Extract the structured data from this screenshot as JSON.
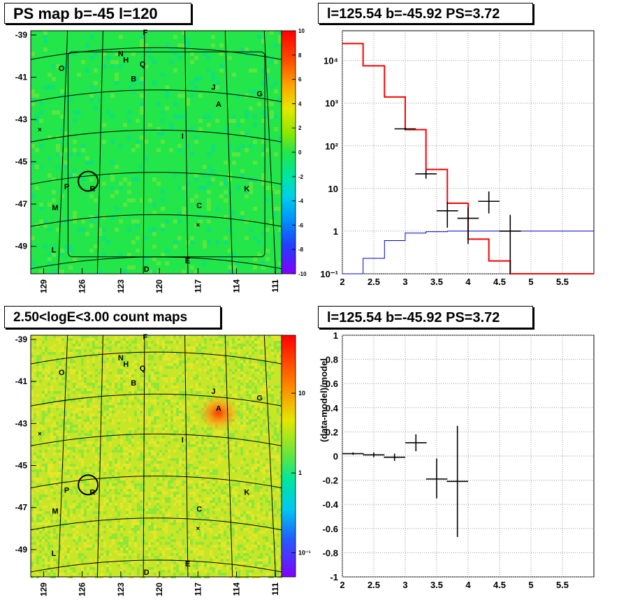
{
  "panels": {
    "tl_title": "PS map b=-45 l=120",
    "bl_title": "2.50<logE<3.00 count maps",
    "tr_title": "l=125.54 b=-45.92 PS=3.72",
    "br_title": "l=125.54 b=-45.92 PS=3.72"
  },
  "colors": {
    "map_green": "#22e64a",
    "map_yellow": "#c8e628",
    "hot_orange": "#ff7a10",
    "model_red": "#ff0000",
    "background_blue": "#0000cc"
  },
  "chart_data": [
    {
      "type": "heatmap",
      "title": "PS map b=-45 l=120",
      "x_tick_labels": [
        "129",
        "126",
        "123",
        "120",
        "117",
        "114",
        "111"
      ],
      "y_tick_labels": [
        "-39",
        "-41",
        "-43",
        "-45",
        "-47",
        "-49"
      ],
      "xlim": [
        130,
        110.5
      ],
      "ylim": [
        -50.3,
        -38.8
      ],
      "colorbar": {
        "range": [
          -10,
          10
        ],
        "tick_labels": [
          "10",
          "8",
          "6",
          "4",
          "2",
          "0",
          "-2",
          "-4",
          "-6",
          "-8",
          "-10"
        ]
      },
      "source_labels": [
        {
          "name": "F",
          "l": 121.1,
          "b": -39.0
        },
        {
          "name": "N",
          "l": 123.0,
          "b": -40.0
        },
        {
          "name": "H",
          "l": 122.6,
          "b": -40.3
        },
        {
          "name": "Q",
          "l": 121.3,
          "b": -40.5
        },
        {
          "name": "O",
          "l": 127.6,
          "b": -40.7
        },
        {
          "name": "B",
          "l": 122.0,
          "b": -41.2
        },
        {
          "name": "J",
          "l": 115.8,
          "b": -41.6
        },
        {
          "name": "G",
          "l": 112.2,
          "b": -41.9
        },
        {
          "name": "A",
          "l": 115.4,
          "b": -42.4
        },
        {
          "name": "I",
          "l": 118.2,
          "b": -43.9
        },
        {
          "name": "P",
          "l": 127.2,
          "b": -46.3
        },
        {
          "name": "R",
          "l": 125.2,
          "b": -46.4
        },
        {
          "name": "K",
          "l": 113.2,
          "b": -46.4
        },
        {
          "name": "M",
          "l": 128.1,
          "b": -47.3
        },
        {
          "name": "C",
          "l": 116.9,
          "b": -47.2
        },
        {
          "name": "L",
          "l": 128.2,
          "b": -49.3
        },
        {
          "name": "E",
          "l": 117.8,
          "b": -49.8
        },
        {
          "name": "D",
          "l": 121.0,
          "b": -50.2
        }
      ],
      "markers": [
        {
          "l": 129.3,
          "b": -43.5
        },
        {
          "l": 117.0,
          "b": -48.0
        }
      ],
      "circle": {
        "l": 125.54,
        "b": -45.92
      }
    },
    {
      "type": "heatmap",
      "title": "2.50<logE<3.00 count maps",
      "x_tick_labels": [
        "129",
        "126",
        "123",
        "120",
        "117",
        "114",
        "111"
      ],
      "y_tick_labels": [
        "-39",
        "-41",
        "-43",
        "-45",
        "-47",
        "-49"
      ],
      "xlim": [
        130,
        110.5
      ],
      "ylim": [
        -50.3,
        -38.8
      ],
      "colorbar": {
        "log_scale": true,
        "tick_labels": [
          "10",
          "1",
          "10⁻¹"
        ]
      },
      "hot_spot": {
        "l": 115.4,
        "b": -42.5
      }
    },
    {
      "type": "line",
      "title": "l=125.54 b=-45.92 PS=3.72",
      "xlim": [
        2,
        6
      ],
      "ylim": [
        0.1,
        50000
      ],
      "y_log": true,
      "x_tick_labels": [
        "2",
        "2.5",
        "3",
        "3.5",
        "4",
        "4.5",
        "5",
        "5.5"
      ],
      "y_tick_labels": [
        "10⁴",
        "10³",
        "10²",
        "10",
        "1",
        "10⁻¹"
      ],
      "grid": true,
      "model_edges": [
        2.0,
        2.33,
        2.67,
        3.0,
        3.33,
        3.67,
        4.0,
        4.33,
        4.67,
        5.0,
        5.33,
        5.67,
        6.0
      ],
      "model_values": [
        25000,
        7500,
        1400,
        240,
        28,
        4.5,
        0.65,
        0.2,
        0.1,
        0.1,
        0.1,
        0.1
      ],
      "background_values": [
        0.01,
        0.23,
        0.6,
        0.9,
        0.97,
        1.0,
        1.0,
        1.0,
        1.0,
        1.0,
        1.0,
        1.0
      ],
      "data_points": [
        {
          "x": 3.0,
          "y": 250,
          "xerr": 0.17,
          "ylo": 235,
          "yhi": 266
        },
        {
          "x": 3.33,
          "y": 22,
          "xerr": 0.17,
          "ylo": 17,
          "yhi": 27
        },
        {
          "x": 3.67,
          "y": 3,
          "xerr": 0.17,
          "ylo": 1.2,
          "yhi": 4.8
        },
        {
          "x": 4.0,
          "y": 2,
          "xerr": 0.17,
          "ylo": 0.5,
          "yhi": 3.6
        },
        {
          "x": 4.33,
          "y": 5,
          "xerr": 0.17,
          "ylo": 2.6,
          "yhi": 8.5
        },
        {
          "x": 4.67,
          "y": 1,
          "xerr": 0.17,
          "ylo": 0.1,
          "yhi": 2.4
        }
      ]
    },
    {
      "type": "scatter",
      "title": "l=125.54 b=-45.92 PS=3.72",
      "ylabel": "(data-model)/model",
      "xlim": [
        2,
        6
      ],
      "ylim": [
        -1,
        1
      ],
      "x_tick_labels": [
        "2",
        "2.5",
        "3",
        "3.5",
        "4",
        "4.5",
        "5",
        "5.5"
      ],
      "y_tick_labels": [
        "1",
        "0.8",
        "0.6",
        "0.4",
        "0.2",
        "0",
        "-0.2",
        "-0.4",
        "-0.6",
        "-0.8",
        "-1"
      ],
      "grid": true,
      "data_points": [
        {
          "x": 2.17,
          "y": 0.02,
          "xerr": 0.17,
          "ylo": 0.01,
          "yhi": 0.03
        },
        {
          "x": 2.5,
          "y": 0.01,
          "xerr": 0.17,
          "ylo": -0.01,
          "yhi": 0.03
        },
        {
          "x": 2.83,
          "y": -0.01,
          "xerr": 0.17,
          "ylo": -0.04,
          "yhi": 0.02
        },
        {
          "x": 3.17,
          "y": 0.11,
          "xerr": 0.17,
          "ylo": 0.04,
          "yhi": 0.18
        },
        {
          "x": 3.5,
          "y": -0.19,
          "xerr": 0.17,
          "ylo": -0.35,
          "yhi": -0.02
        },
        {
          "x": 3.83,
          "y": -0.21,
          "xerr": 0.17,
          "ylo": -0.67,
          "yhi": 0.25
        }
      ]
    }
  ]
}
